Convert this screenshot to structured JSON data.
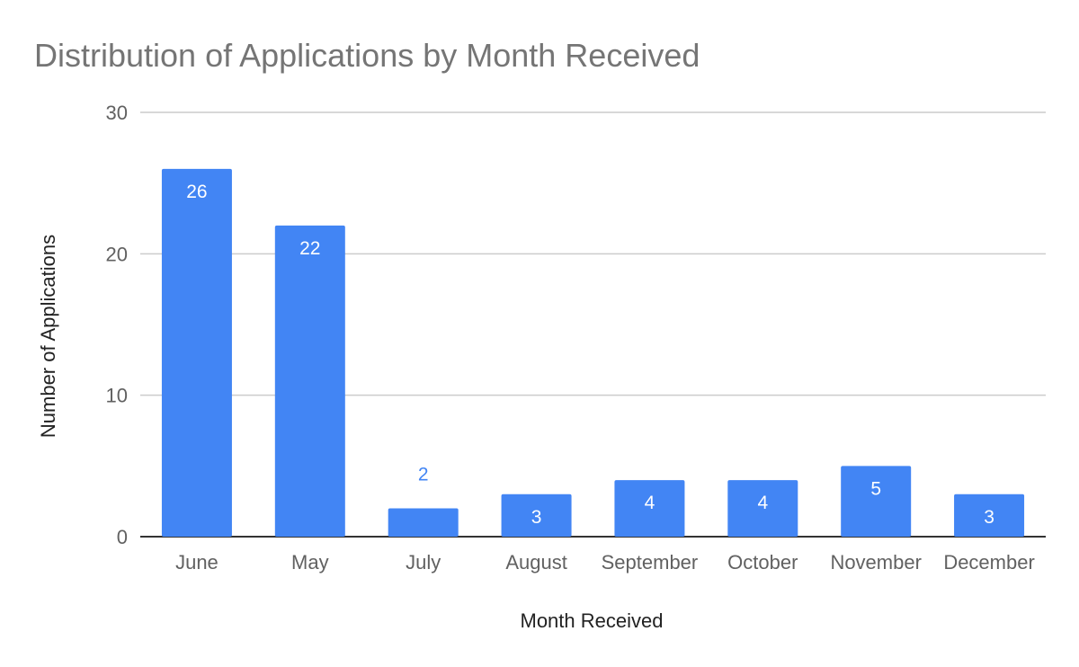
{
  "chart_data": {
    "type": "bar",
    "title": "Distribution of Applications by Month Received",
    "xlabel": "Month Received",
    "ylabel": "Number of Applications",
    "categories": [
      "June",
      "May",
      "July",
      "August",
      "September",
      "October",
      "November",
      "December"
    ],
    "values": [
      26,
      22,
      2,
      3,
      4,
      4,
      5,
      3
    ],
    "ylim": [
      0,
      30
    ],
    "yticks": [
      0,
      10,
      20,
      30
    ],
    "grid": true,
    "legend": "none",
    "colors": {
      "bar": "#4285f4",
      "label_inside": "#ffffff",
      "label_outside": "#4285f4",
      "gridline": "#cccccc",
      "baseline": "#333333"
    }
  }
}
